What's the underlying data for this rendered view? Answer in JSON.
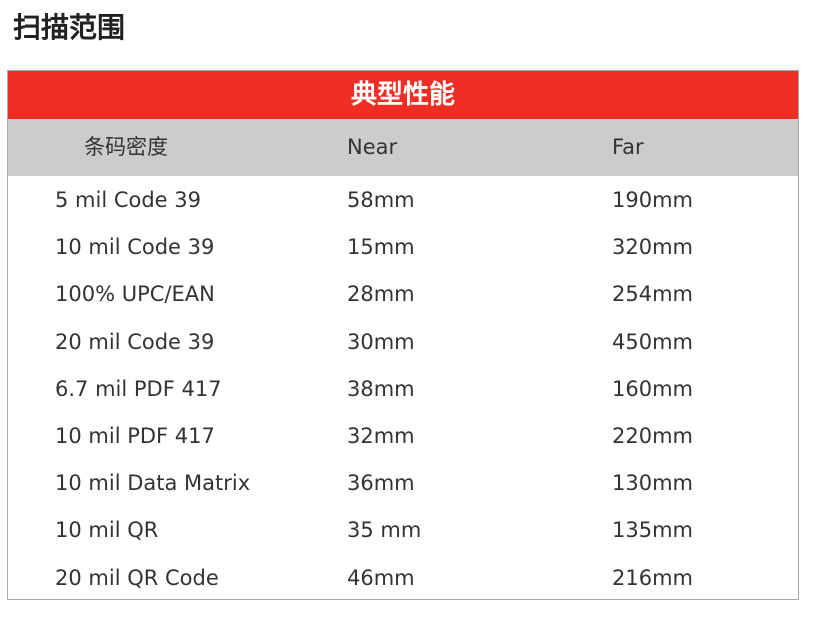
{
  "title": "扫描范围",
  "table": {
    "banner": "典型性能",
    "headers": [
      "条码密度",
      "Near",
      "Far"
    ],
    "rows": [
      [
        "5 mil Code 39",
        "58mm",
        "190mm"
      ],
      [
        "10 mil Code 39",
        "15mm",
        "320mm"
      ],
      [
        "100% UPC/EAN",
        "28mm",
        "254mm"
      ],
      [
        "20 mil Code 39",
        "30mm",
        "450mm"
      ],
      [
        "6.7 mil PDF 417",
        "38mm",
        "160mm"
      ],
      [
        "10 mil PDF 417",
        "32mm",
        "220mm"
      ],
      [
        "10 mil Data Matrix",
        "36mm",
        "130mm"
      ],
      [
        "10 mil QR",
        "35 mm",
        "135mm"
      ],
      [
        "20 mil QR Code",
        "46mm",
        "216mm"
      ]
    ]
  },
  "colors": {
    "banner": "#ee2e24",
    "header": "#cbcccd"
  }
}
